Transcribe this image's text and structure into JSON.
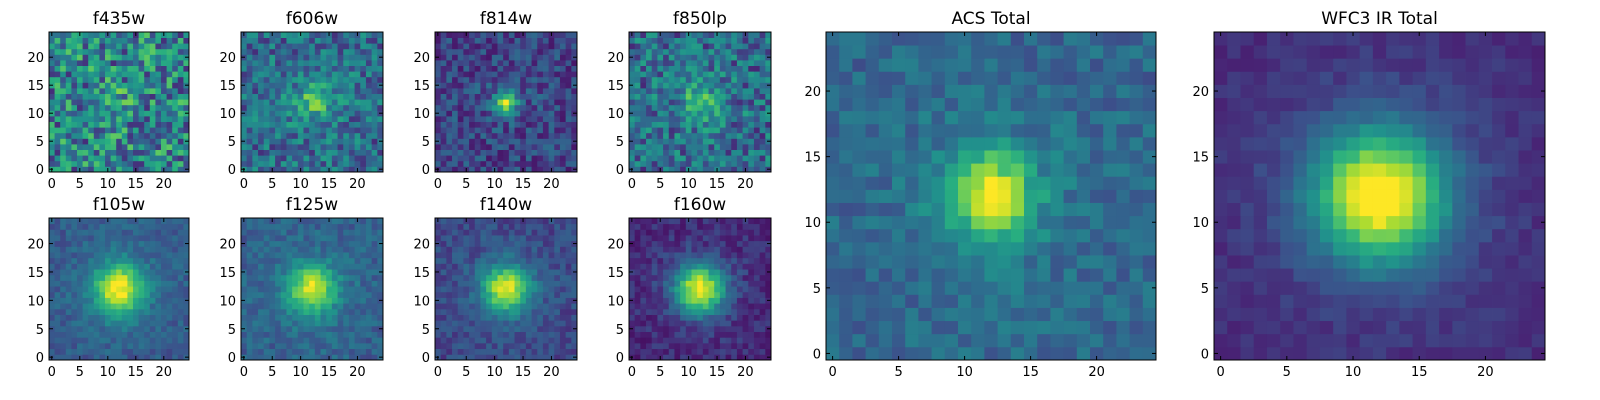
{
  "figure": {
    "colormap": "viridis",
    "colors": {
      "low": "#440154",
      "mid": "#21918c",
      "high": "#fde725"
    }
  },
  "chart_data": [
    {
      "type": "heatmap",
      "title": "f435w",
      "grid_size": [
        25,
        25
      ],
      "xlim": [
        -0.5,
        24.5
      ],
      "ylim": [
        -0.5,
        24.5
      ],
      "xticks": [
        0,
        5,
        10,
        15,
        20
      ],
      "yticks": [
        0,
        5,
        10,
        15,
        20
      ],
      "peak": [
        12,
        12
      ],
      "peak_value": 0.5,
      "background_level": 0.45,
      "noise_level": 0.3,
      "blob_width": 1.0
    },
    {
      "type": "heatmap",
      "title": "f606w",
      "grid_size": [
        25,
        25
      ],
      "xlim": [
        -0.5,
        24.5
      ],
      "ylim": [
        -0.5,
        24.5
      ],
      "xticks": [
        0,
        5,
        10,
        15,
        20
      ],
      "yticks": [
        0,
        5,
        10,
        15,
        20
      ],
      "peak": [
        12,
        12
      ],
      "peak_value": 0.65,
      "background_level": 0.35,
      "noise_level": 0.2,
      "blob_width": 2.0
    },
    {
      "type": "heatmap",
      "title": "f814w",
      "grid_size": [
        25,
        25
      ],
      "xlim": [
        -0.5,
        24.5
      ],
      "ylim": [
        -0.5,
        24.5
      ],
      "xticks": [
        0,
        5,
        10,
        15,
        20
      ],
      "yticks": [
        0,
        5,
        10,
        15,
        20
      ],
      "peak": [
        12,
        12
      ],
      "peak_value": 0.85,
      "background_level": 0.22,
      "noise_level": 0.14,
      "blob_width": 1.3
    },
    {
      "type": "heatmap",
      "title": "f850lp",
      "grid_size": [
        25,
        25
      ],
      "xlim": [
        -0.5,
        24.5
      ],
      "ylim": [
        -0.5,
        24.5
      ],
      "xticks": [
        0,
        5,
        10,
        15,
        20
      ],
      "yticks": [
        0,
        5,
        10,
        15,
        20
      ],
      "peak": [
        12,
        12
      ],
      "peak_value": 0.65,
      "background_level": 0.35,
      "noise_level": 0.22,
      "blob_width": 2.0
    },
    {
      "type": "heatmap",
      "title": "f105w",
      "grid_size": [
        25,
        25
      ],
      "xlim": [
        -0.5,
        24.5
      ],
      "ylim": [
        -0.5,
        24.5
      ],
      "xticks": [
        0,
        5,
        10,
        15,
        20
      ],
      "yticks": [
        0,
        5,
        10,
        15,
        20
      ],
      "peak": [
        12,
        12
      ],
      "peak_value": 0.95,
      "background_level": 0.28,
      "noise_level": 0.08,
      "blob_width": 3.0
    },
    {
      "type": "heatmap",
      "title": "f125w",
      "grid_size": [
        25,
        25
      ],
      "xlim": [
        -0.5,
        24.5
      ],
      "ylim": [
        -0.5,
        24.5
      ],
      "xticks": [
        0,
        5,
        10,
        15,
        20
      ],
      "yticks": [
        0,
        5,
        10,
        15,
        20
      ],
      "peak": [
        12,
        12
      ],
      "peak_value": 0.9,
      "background_level": 0.3,
      "noise_level": 0.09,
      "blob_width": 2.8
    },
    {
      "type": "heatmap",
      "title": "f140w",
      "grid_size": [
        25,
        25
      ],
      "xlim": [
        -0.5,
        24.5
      ],
      "ylim": [
        -0.5,
        24.5
      ],
      "xticks": [
        0,
        5,
        10,
        15,
        20
      ],
      "yticks": [
        0,
        5,
        10,
        15,
        20
      ],
      "peak": [
        12,
        12
      ],
      "peak_value": 0.9,
      "background_level": 0.22,
      "noise_level": 0.08,
      "blob_width": 2.8
    },
    {
      "type": "heatmap",
      "title": "f160w",
      "grid_size": [
        25,
        25
      ],
      "xlim": [
        -0.5,
        24.5
      ],
      "ylim": [
        -0.5,
        24.5
      ],
      "xticks": [
        0,
        5,
        10,
        15,
        20
      ],
      "yticks": [
        0,
        5,
        10,
        15,
        20
      ],
      "peak": [
        12,
        12
      ],
      "peak_value": 0.92,
      "background_level": 0.12,
      "noise_level": 0.08,
      "blob_width": 3.0
    },
    {
      "type": "heatmap",
      "title": "ACS Total",
      "grid_size": [
        25,
        25
      ],
      "xlim": [
        -0.5,
        24.5
      ],
      "ylim": [
        -0.5,
        24.5
      ],
      "xticks": [
        0,
        5,
        10,
        15,
        20
      ],
      "yticks": [
        0,
        5,
        10,
        15,
        20
      ],
      "peak": [
        12,
        12
      ],
      "peak_value": 0.95,
      "background_level": 0.33,
      "noise_level": 0.1,
      "blob_width": 2.2
    },
    {
      "type": "heatmap",
      "title": "WFC3 IR Total",
      "grid_size": [
        25,
        25
      ],
      "xlim": [
        -0.5,
        24.5
      ],
      "ylim": [
        -0.5,
        24.5
      ],
      "xticks": [
        0,
        5,
        10,
        15,
        20
      ],
      "yticks": [
        0,
        5,
        10,
        15,
        20
      ],
      "peak": [
        12,
        12
      ],
      "peak_value": 1.0,
      "background_level": 0.14,
      "noise_level": 0.04,
      "blob_width": 3.4
    }
  ]
}
